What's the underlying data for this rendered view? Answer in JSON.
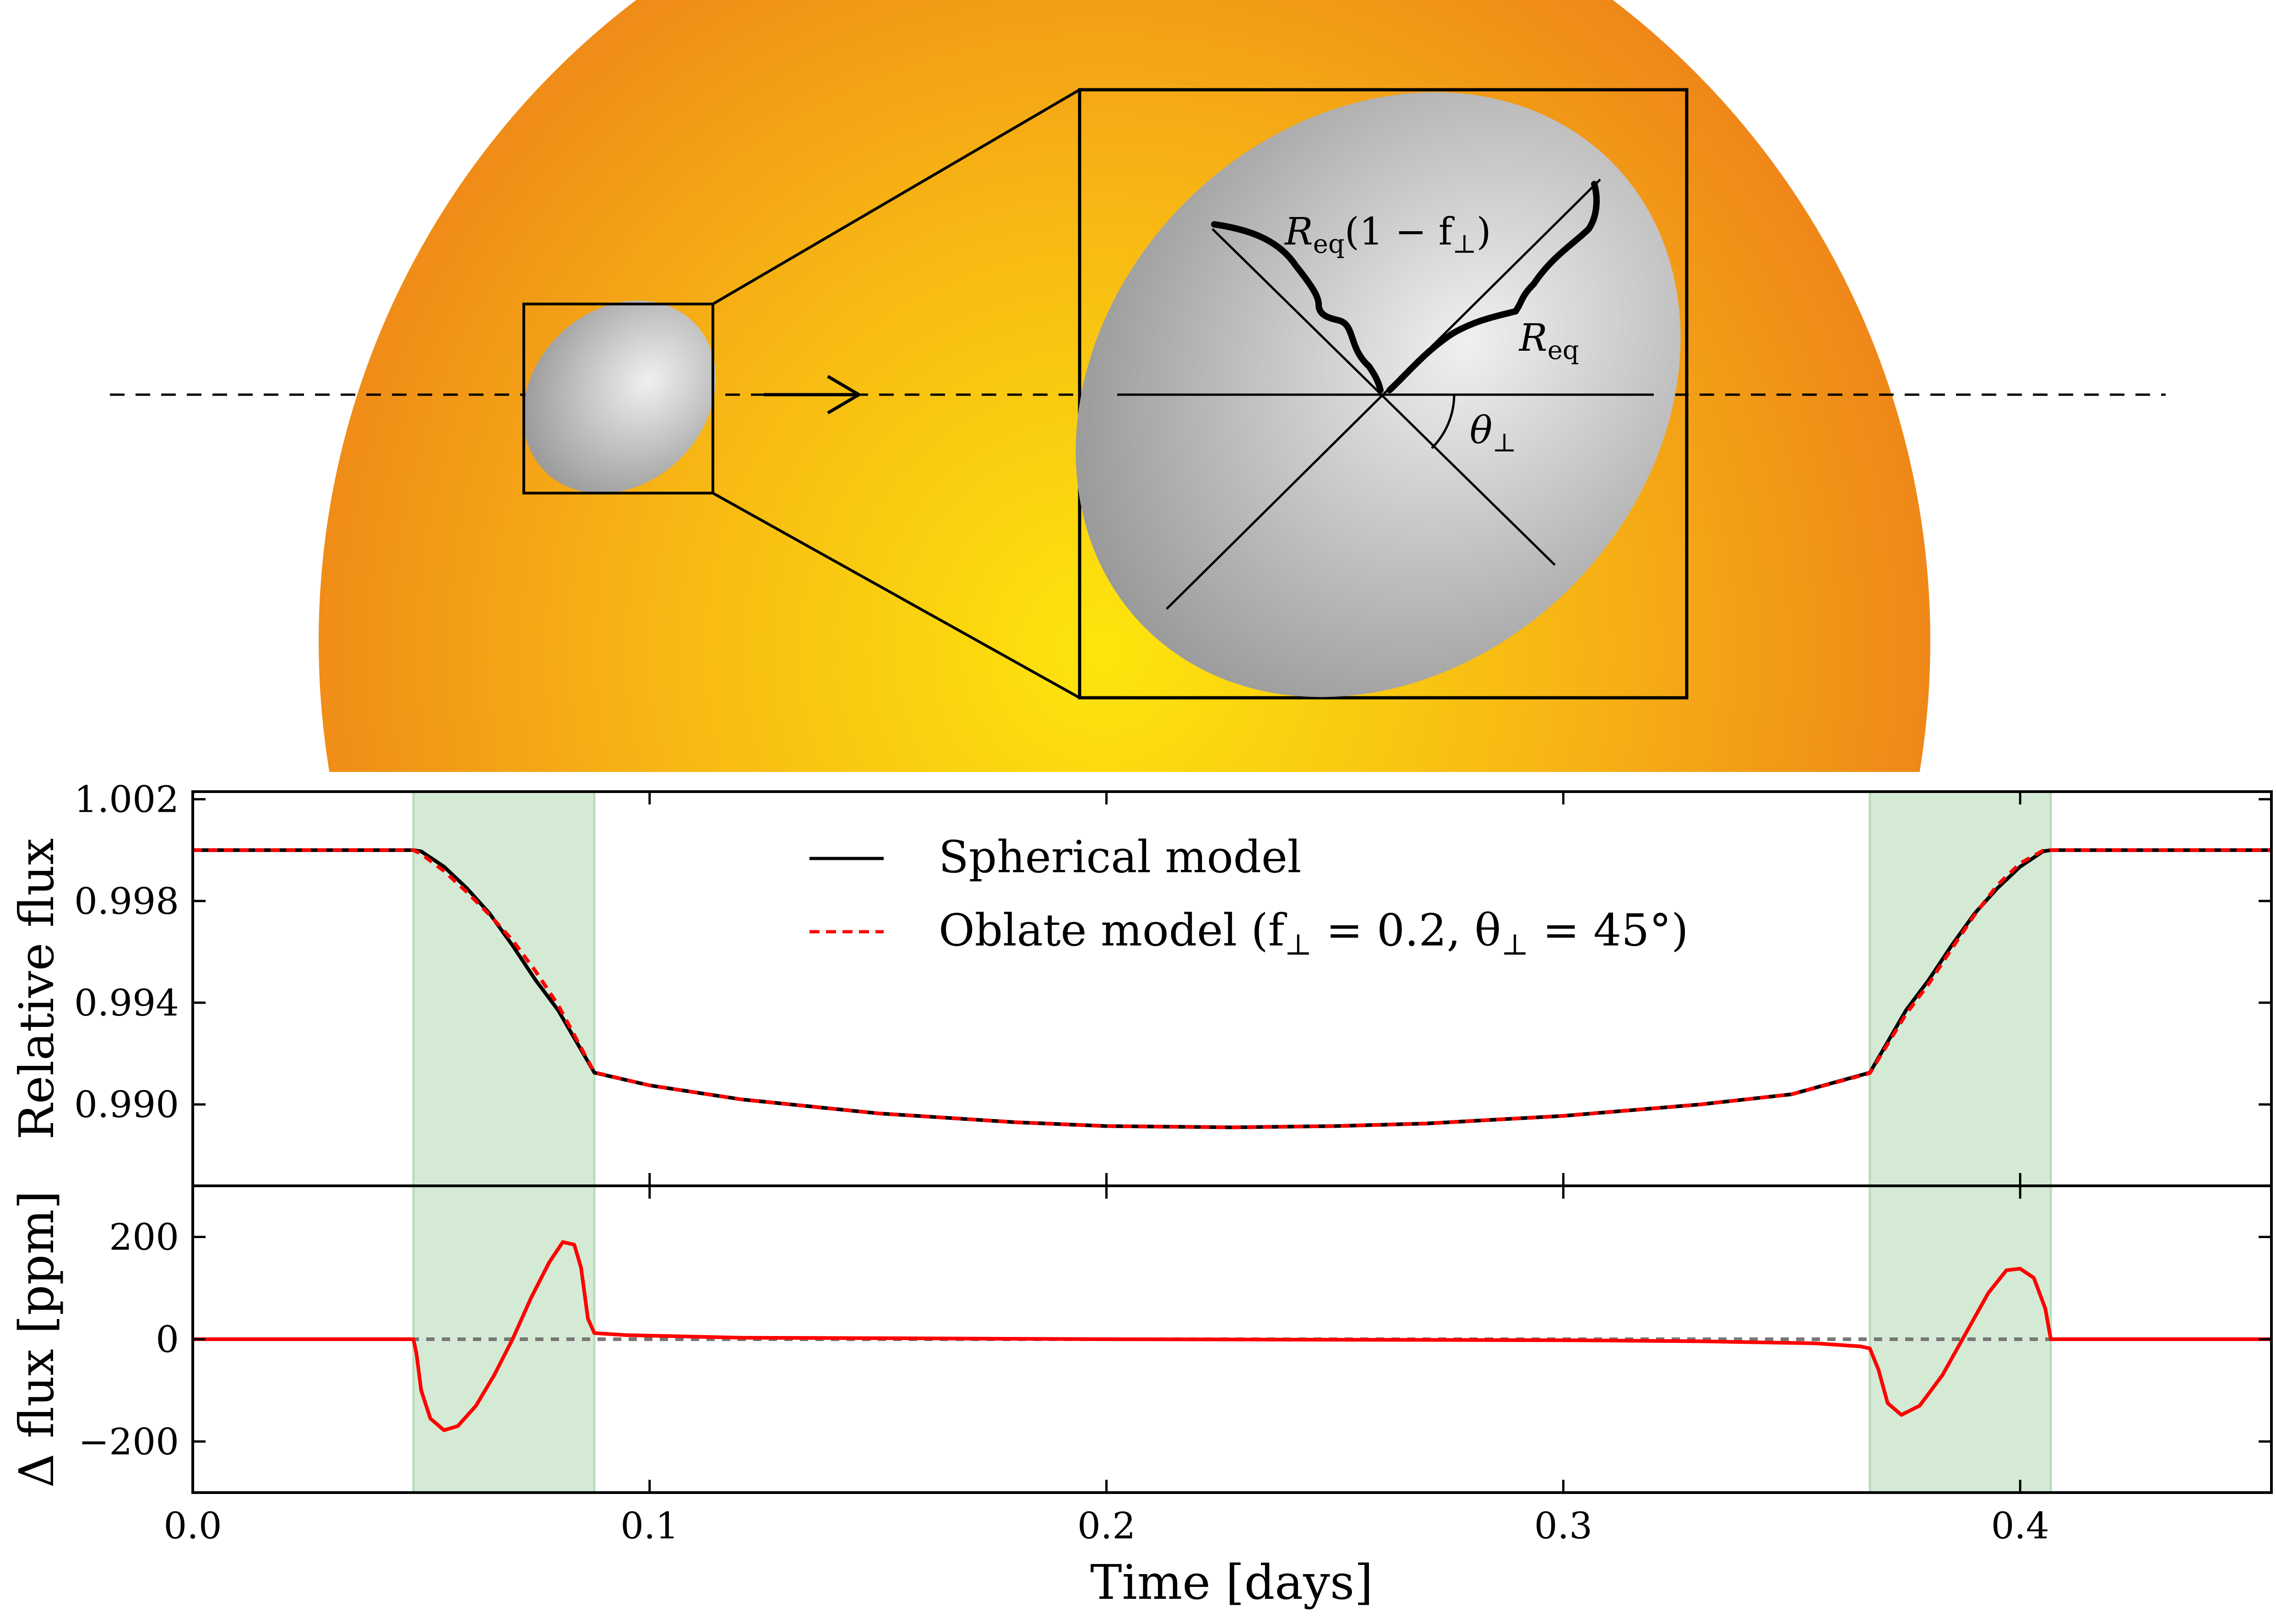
{
  "illustration": {
    "labels": {
      "semi_major": "R",
      "semi_major_sub": "eq",
      "semi_minor": "R",
      "semi_minor_sub": "eq",
      "semi_minor_rest": "(1 − f",
      "perp": "⊥",
      "close_paren": ")",
      "angle": "θ",
      "angle_sub": "⊥"
    },
    "colors": {
      "star_center": "#fde60c",
      "star_mid": "#f7b614",
      "star_edge": "#ef8818",
      "planet_light": "#f0f0f0",
      "planet_dark": "#8e8e8e"
    }
  },
  "chart_data": [
    {
      "type": "line",
      "panel": "top",
      "ylabel": "Relative flux",
      "ylim": [
        0.9868,
        1.0023
      ],
      "xlim": [
        0.0,
        0.455
      ],
      "yticks": [
        0.99,
        0.994,
        0.998,
        1.002
      ],
      "ytick_labels": [
        "0.990",
        "0.994",
        "0.998",
        "1.002"
      ],
      "shaded_regions": [
        [
          0.0483,
          0.0879
        ],
        [
          0.3671,
          0.4067
        ]
      ],
      "shade_color": "#d5ead5",
      "legend": {
        "placement": "top-center",
        "entries": [
          {
            "label": "Spherical model",
            "color": "#000000",
            "style": "solid"
          },
          {
            "label": "Oblate model (f",
            "sub": "⊥",
            "mid": " = 0.2, θ",
            "sub2": "⊥",
            "tail": " = 45°)",
            "color": "#ff0000",
            "style": "dashed"
          }
        ]
      },
      "series": [
        {
          "name": "Spherical model",
          "color": "#000000",
          "style": "solid",
          "x": [
            0.0,
            0.0483,
            0.05,
            0.055,
            0.06,
            0.065,
            0.07,
            0.075,
            0.08,
            0.0879,
            0.1,
            0.12,
            0.15,
            0.18,
            0.2,
            0.2275,
            0.25,
            0.27,
            0.3,
            0.33,
            0.35,
            0.3671,
            0.375,
            0.38,
            0.385,
            0.39,
            0.395,
            0.4,
            0.405,
            0.4067,
            0.455
          ],
          "y": [
            1.0,
            1.0,
            0.99995,
            0.99935,
            0.9985,
            0.9975,
            0.99625,
            0.9949,
            0.9937,
            0.99125,
            0.99075,
            0.9902,
            0.98965,
            0.9893,
            0.98915,
            0.9891,
            0.98915,
            0.98925,
            0.98955,
            0.99,
            0.9904,
            0.99125,
            0.9937,
            0.9949,
            0.99625,
            0.9975,
            0.9985,
            0.99935,
            0.99995,
            1.0,
            1.0
          ]
        },
        {
          "name": "Oblate model (f⊥ = 0.2, θ⊥ = 45°)",
          "color": "#ff0000",
          "style": "dashed",
          "x": [
            0.0,
            0.0483,
            0.05,
            0.055,
            0.06,
            0.065,
            0.07,
            0.075,
            0.08,
            0.0879,
            0.1,
            0.12,
            0.15,
            0.18,
            0.2,
            0.2275,
            0.25,
            0.27,
            0.3,
            0.33,
            0.35,
            0.3671,
            0.375,
            0.38,
            0.385,
            0.39,
            0.395,
            0.4,
            0.405,
            0.4067,
            0.455
          ],
          "y": [
            1.0,
            1.0,
            0.99985,
            0.99918,
            0.99835,
            0.99745,
            0.99645,
            0.99525,
            0.9939,
            0.99126,
            0.99075,
            0.9902,
            0.98965,
            0.9893,
            0.98915,
            0.9891,
            0.98915,
            0.98925,
            0.98955,
            0.99,
            0.9904,
            0.99123,
            0.99355,
            0.99475,
            0.99612,
            0.99745,
            0.99862,
            0.99948,
            0.99998,
            1.0,
            1.0
          ]
        }
      ]
    },
    {
      "type": "line",
      "panel": "bottom",
      "ylabel": "Δ flux [ppm]",
      "xlabel": "Time [days]",
      "xlim": [
        0.0,
        0.455
      ],
      "ylim": [
        -300,
        300
      ],
      "yticks": [
        -200,
        0,
        200
      ],
      "ytick_labels": [
        "−200",
        "0",
        "200"
      ],
      "xticks": [
        0.0,
        0.1,
        0.2,
        0.3,
        0.4
      ],
      "xtick_labels": [
        "0.0",
        "0.1",
        "0.2",
        "0.3",
        "0.4"
      ],
      "zero_line_color": "#777777",
      "series": [
        {
          "name": "Δ flux",
          "color": "#ff0000",
          "style": "solid",
          "x": [
            0.0,
            0.0483,
            0.049,
            0.05,
            0.052,
            0.055,
            0.058,
            0.062,
            0.066,
            0.07,
            0.074,
            0.078,
            0.081,
            0.0835,
            0.085,
            0.0865,
            0.0879,
            0.095,
            0.12,
            0.15,
            0.2,
            0.25,
            0.3,
            0.33,
            0.355,
            0.365,
            0.3671,
            0.369,
            0.371,
            0.374,
            0.378,
            0.383,
            0.388,
            0.393,
            0.397,
            0.4,
            0.403,
            0.4055,
            0.4067,
            0.41,
            0.455
          ],
          "y": [
            0,
            0,
            -30,
            -100,
            -155,
            -178,
            -170,
            -130,
            -70,
            0,
            80,
            150,
            190,
            185,
            140,
            40,
            12,
            8,
            3,
            2,
            0,
            -1,
            -2,
            -4,
            -8,
            -14,
            -18,
            -60,
            -125,
            -148,
            -130,
            -70,
            10,
            90,
            135,
            138,
            120,
            60,
            0,
            0,
            0
          ]
        }
      ]
    }
  ]
}
